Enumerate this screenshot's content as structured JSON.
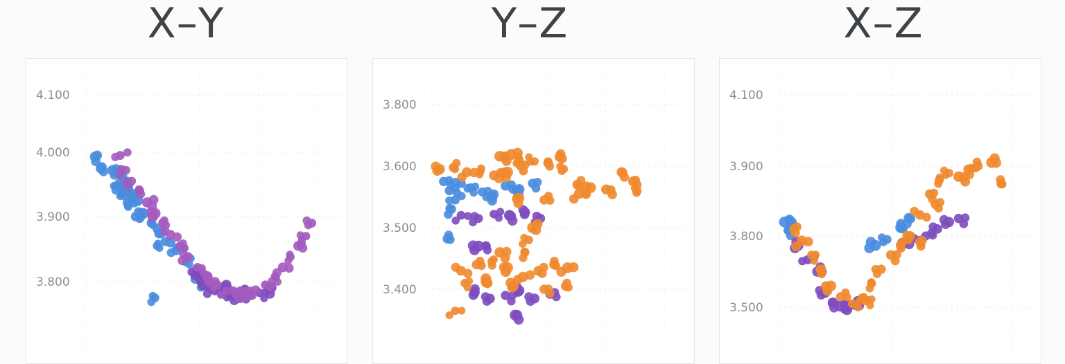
{
  "titles": [
    "X–Y",
    "Y–Z",
    "X–Z"
  ],
  "colors": {
    "x_series": "#4a8ddf",
    "y_series": "#a35bbf",
    "z_series": "#f08a2f",
    "overlap": "#7d4cbf"
  },
  "chart_data": [
    {
      "type": "scatter",
      "title": "X–Y",
      "ylim": [
        3.73,
        4.15
      ],
      "yticks": [
        "4.100",
        "4.000",
        "3.900",
        "3.800"
      ],
      "grid": true,
      "series": [
        {
          "color": "blue",
          "points": [
            [
              0.5,
              3.993
            ],
            [
              0.8,
              3.975
            ],
            [
              1.4,
              3.972
            ],
            [
              1.7,
              3.968
            ],
            [
              2.0,
              3.955
            ],
            [
              1.6,
              3.948
            ],
            [
              2.1,
              3.945
            ],
            [
              2.4,
              3.935
            ],
            [
              1.9,
              3.935
            ],
            [
              2.7,
              3.925
            ],
            [
              2.2,
              3.918
            ],
            [
              3.0,
              3.905
            ],
            [
              2.6,
              3.9
            ],
            [
              3.4,
              3.89
            ],
            [
              3.9,
              3.875
            ],
            [
              4.4,
              3.86
            ],
            [
              3.7,
              3.855
            ],
            [
              4.7,
              3.848
            ],
            [
              5.2,
              3.83
            ],
            [
              5.7,
              3.81
            ],
            [
              6.2,
              3.795
            ],
            [
              6.7,
              3.79
            ],
            [
              3.6,
              3.775
            ]
          ]
        },
        {
          "color": "purple",
          "points": [
            [
              5.5,
              3.815
            ],
            [
              6.0,
              3.8
            ],
            [
              6.5,
              3.79
            ],
            [
              7.0,
              3.782
            ],
            [
              7.5,
              3.78
            ],
            [
              8.0,
              3.778
            ],
            [
              8.5,
              3.779
            ],
            [
              9.0,
              3.783
            ],
            [
              9.5,
              3.79
            ],
            [
              6.2,
              3.808
            ],
            [
              7.2,
              3.792
            ],
            [
              8.3,
              3.785
            ],
            [
              5.9,
              3.818
            ]
          ]
        },
        {
          "color": "magenta",
          "points": [
            [
              1.8,
              3.995
            ],
            [
              2.1,
              3.972
            ],
            [
              2.4,
              3.955
            ],
            [
              2.8,
              3.94
            ],
            [
              3.2,
              3.922
            ],
            [
              3.6,
              3.905
            ],
            [
              4.0,
              3.89
            ],
            [
              4.4,
              3.872
            ],
            [
              4.9,
              3.855
            ],
            [
              5.3,
              3.838
            ],
            [
              5.8,
              3.822
            ],
            [
              6.3,
              3.808
            ],
            [
              6.8,
              3.795
            ],
            [
              7.3,
              3.786
            ],
            [
              7.8,
              3.782
            ],
            [
              8.3,
              3.782
            ],
            [
              8.8,
              3.787
            ],
            [
              9.3,
              3.795
            ],
            [
              9.8,
              3.808
            ],
            [
              10.2,
              3.822
            ],
            [
              10.6,
              3.838
            ],
            [
              11.0,
              3.855
            ],
            [
              11.4,
              3.87
            ],
            [
              11.7,
              3.89
            ]
          ]
        }
      ]
    },
    {
      "type": "scatter",
      "title": "Y–Z",
      "ylim": [
        3.3,
        3.9
      ],
      "yticks": [
        "3.800",
        "3.600",
        "3.500",
        "3.400"
      ],
      "grid": true,
      "series": [
        {
          "color": "blue",
          "points": [
            [
              0.6,
              3.575
            ],
            [
              0.9,
              3.56
            ],
            [
              1.2,
              3.545
            ],
            [
              1.0,
              3.53
            ],
            [
              1.5,
              3.572
            ],
            [
              2.0,
              3.565
            ],
            [
              2.6,
              3.558
            ],
            [
              3.1,
              3.55
            ],
            [
              3.8,
              3.568
            ],
            [
              4.5,
              3.562
            ],
            [
              5.2,
              3.572
            ],
            [
              0.8,
              3.482
            ]
          ]
        },
        {
          "color": "purple",
          "points": [
            [
              1.5,
              3.52
            ],
            [
              2.4,
              3.515
            ],
            [
              3.2,
              3.522
            ],
            [
              4.0,
              3.52
            ],
            [
              4.8,
              3.525
            ],
            [
              5.6,
              3.515
            ],
            [
              2.2,
              3.395
            ],
            [
              3.0,
              3.385
            ],
            [
              3.8,
              3.39
            ],
            [
              4.5,
              3.398
            ],
            [
              5.3,
              3.385
            ],
            [
              6.1,
              3.392
            ],
            [
              4.3,
              3.358
            ],
            [
              2.4,
              3.47
            ],
            [
              2.8,
              3.47
            ]
          ]
        },
        {
          "color": "orange",
          "points": [
            [
              0.4,
              3.595
            ],
            [
              1.1,
              3.598
            ],
            [
              1.8,
              3.59
            ],
            [
              2.5,
              3.592
            ],
            [
              3.2,
              3.585
            ],
            [
              3.9,
              3.59
            ],
            [
              4.6,
              3.6
            ],
            [
              5.3,
              3.615
            ],
            [
              6.0,
              3.61
            ],
            [
              6.8,
              3.595
            ],
            [
              7.5,
              3.57
            ],
            [
              8.2,
              3.565
            ],
            [
              9.0,
              3.562
            ],
            [
              9.8,
              3.59
            ],
            [
              10.4,
              3.575
            ],
            [
              3.5,
              3.632
            ],
            [
              4.1,
              3.638
            ],
            [
              4.5,
              3.62
            ],
            [
              6.6,
              3.63
            ],
            [
              10.6,
              3.56
            ],
            [
              1.5,
              3.43
            ],
            [
              2.3,
              3.44
            ],
            [
              3.1,
              3.445
            ],
            [
              3.9,
              3.435
            ],
            [
              4.7,
              3.42
            ],
            [
              5.5,
              3.43
            ],
            [
              6.3,
              3.44
            ],
            [
              7.0,
              3.435
            ],
            [
              2.8,
              3.412
            ],
            [
              4.2,
              3.405
            ],
            [
              5.8,
              3.4
            ],
            [
              4.8,
              3.46
            ],
            [
              5.0,
              3.48
            ],
            [
              5.2,
              3.5
            ],
            [
              3.5,
              3.46
            ],
            [
              1.2,
              3.365
            ],
            [
              1.7,
              3.41
            ],
            [
              6.9,
              3.405
            ],
            [
              4.5,
              3.548
            ],
            [
              5.8,
              3.545
            ],
            [
              7.6,
              3.555
            ]
          ]
        }
      ]
    },
    {
      "type": "scatter",
      "title": "X–Z",
      "ylim": [
        3.45,
        4.1
      ],
      "yticks": [
        "4.100",
        "3.900",
        "3.800",
        "3.500"
      ],
      "grid": true,
      "series": [
        {
          "color": "blue",
          "points": [
            [
              0.3,
              3.82
            ],
            [
              0.5,
              3.808
            ],
            [
              0.7,
              3.82
            ],
            [
              5.0,
              3.76
            ],
            [
              5.6,
              3.785
            ],
            [
              6.3,
              3.812
            ],
            [
              6.8,
              3.825
            ]
          ]
        },
        {
          "color": "purple",
          "points": [
            [
              1.0,
              3.76
            ],
            [
              1.5,
              3.7
            ],
            [
              2.0,
              3.65
            ],
            [
              2.4,
              3.56
            ],
            [
              2.8,
              3.52
            ],
            [
              3.2,
              3.505
            ],
            [
              3.6,
              3.5
            ],
            [
              4.0,
              3.51
            ],
            [
              6.4,
              3.77
            ],
            [
              7.0,
              3.79
            ],
            [
              7.6,
              3.8
            ],
            [
              8.2,
              3.81
            ],
            [
              8.8,
              3.82
            ],
            [
              9.3,
              3.825
            ]
          ]
        },
        {
          "color": "orange",
          "points": [
            [
              0.8,
              3.81
            ],
            [
              1.2,
              3.78
            ],
            [
              1.7,
              3.72
            ],
            [
              2.2,
              3.66
            ],
            [
              2.7,
              3.59
            ],
            [
              3.2,
              3.545
            ],
            [
              3.8,
              3.515
            ],
            [
              4.3,
              3.54
            ],
            [
              4.8,
              3.6
            ],
            [
              5.3,
              3.66
            ],
            [
              5.8,
              3.72
            ],
            [
              6.3,
              3.76
            ],
            [
              6.8,
              3.8
            ],
            [
              7.3,
              3.83
            ],
            [
              7.8,
              3.86
            ],
            [
              8.3,
              3.88
            ],
            [
              8.8,
              3.89
            ],
            [
              9.3,
              3.885
            ],
            [
              9.8,
              3.895
            ],
            [
              10.3,
              3.9
            ],
            [
              11.0,
              3.91
            ],
            [
              11.5,
              3.875
            ],
            [
              4.6,
              3.53
            ],
            [
              7.4,
              3.78
            ],
            [
              8.1,
              3.845
            ]
          ]
        }
      ]
    }
  ]
}
